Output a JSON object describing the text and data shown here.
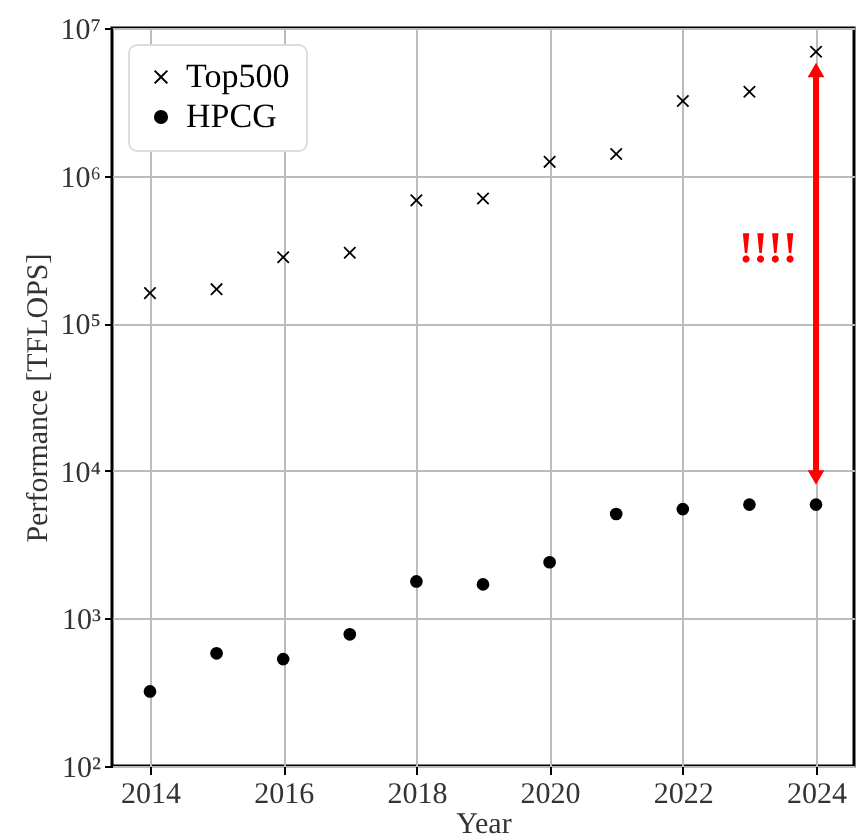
{
  "chart_data": {
    "type": "scatter",
    "xlabel": "Year",
    "ylabel": "Performance [TFLOPS]",
    "x": [
      2014,
      2015,
      2016,
      2017,
      2018,
      2019,
      2020,
      2021,
      2022,
      2023,
      2024
    ],
    "series": [
      {
        "name": "Top500",
        "color": "#000000",
        "marker": "cross",
        "values": [
          160000,
          170000,
          280000,
          300000,
          680000,
          700000,
          1240000,
          1400000,
          3200000,
          3700000,
          6900000
        ]
      },
      {
        "name": "HPCG",
        "color": "#000000",
        "marker": "circle",
        "values": [
          320,
          580,
          530,
          780,
          1780,
          1700,
          2400,
          5100,
          5500,
          5900,
          5900
        ]
      },
      {
        "type": "line",
        "color": "#ff0000",
        "marker": "triangle",
        "x": [
          2024,
          2024
        ],
        "values": [
          5200000,
          9000
        ]
      }
    ],
    "log": "y",
    "xlim": [
      2013.43,
      2024.57
    ],
    "xticks": [
      2014,
      2016,
      2018,
      2020,
      2022,
      2024
    ],
    "ylim": [
      100,
      10000000
    ],
    "yticks": [
      {
        "value": 100,
        "label": "10²"
      },
      {
        "value": 1000,
        "label": "10³"
      },
      {
        "value": 10000,
        "label": "10⁴"
      },
      {
        "value": 100000,
        "label": "10⁵"
      },
      {
        "value": 1000000,
        "label": "10⁶"
      },
      {
        "value": 10000000,
        "label": "10⁷"
      }
    ],
    "grid": true,
    "legend": "top left",
    "annotations": [
      "!!!!"
    ]
  }
}
